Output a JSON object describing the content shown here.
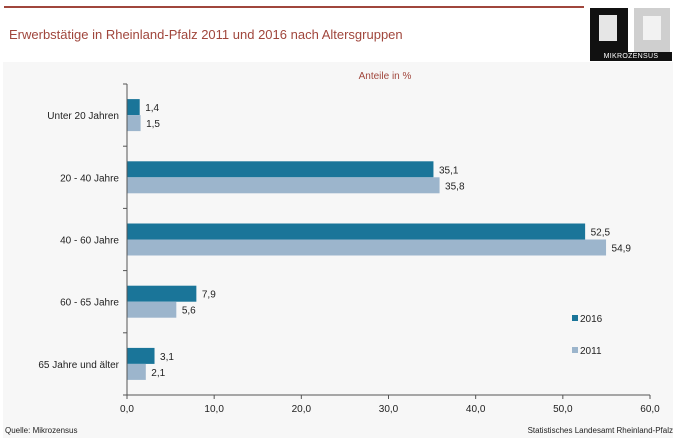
{
  "header": {
    "title": "Erwerbstätige in Rheinland-Pfalz 2011 und 2016 nach Altersgruppen",
    "logo_text": "MIKROZENSUS"
  },
  "footer": {
    "source": "Quelle: Mikrozensus",
    "publisher": "Statistisches Landesamt Rheinland-Pfalz"
  },
  "colors": {
    "series_2016": "#1a7599",
    "series_2011": "#9cb5cc",
    "title": "#a0463c"
  },
  "chart_data": {
    "type": "bar",
    "orientation": "horizontal",
    "title": "Erwerbstätige in Rheinland-Pfalz 2011 und 2016 nach Altersgruppen",
    "unit_label": "Anteile in %",
    "categories": [
      "Unter 20 Jahren",
      "20 - 40 Jahre",
      "40 - 60 Jahre",
      "60 - 65 Jahre",
      "65 Jahre und älter"
    ],
    "series": [
      {
        "name": "2016",
        "values": [
          1.4,
          35.1,
          52.5,
          7.9,
          3.1
        ],
        "labels": [
          "1,4",
          "35,1",
          "52,5",
          "7,9",
          "3,1"
        ]
      },
      {
        "name": "2011",
        "values": [
          1.5,
          35.8,
          54.9,
          5.6,
          2.1
        ],
        "labels": [
          "1,5",
          "35,8",
          "54,9",
          "5,6",
          "2,1"
        ]
      }
    ],
    "xlim": [
      0,
      60
    ],
    "xticks": [
      0,
      10,
      20,
      30,
      40,
      50,
      60
    ],
    "xtick_labels": [
      "0,0",
      "10,0",
      "20,0",
      "30,0",
      "40,0",
      "50,0",
      "60,0"
    ],
    "grid": false,
    "legend_position": "right"
  }
}
